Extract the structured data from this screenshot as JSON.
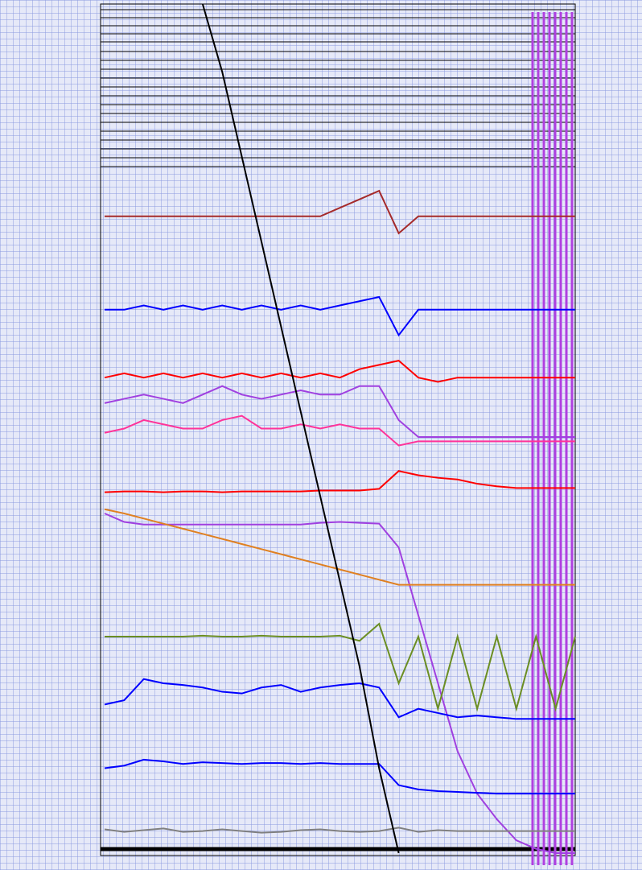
{
  "chart_data": {
    "type": "line",
    "grid": true,
    "ylim": [
      0,
      100
    ],
    "series": [
      {
        "color": "#a52a2a",
        "values": [
          75,
          75,
          75,
          75,
          75,
          75,
          75,
          75,
          75,
          75,
          75,
          75,
          76,
          77,
          78,
          73,
          75,
          75,
          75,
          75,
          75,
          75,
          75,
          75,
          75
        ]
      },
      {
        "color": "#0000ff",
        "values": [
          64,
          64,
          64.5,
          64,
          64.5,
          64,
          64.5,
          64,
          64.5,
          64,
          64.5,
          64,
          64.5,
          65,
          65.5,
          61,
          64,
          64,
          64,
          64,
          64,
          64,
          64,
          64,
          64
        ]
      },
      {
        "color": "#ff0000",
        "values": [
          56,
          56.5,
          56,
          56.5,
          56,
          56.5,
          56,
          56.5,
          56,
          56.5,
          56,
          56.5,
          56,
          57,
          57.5,
          58,
          56,
          55.5,
          56,
          56,
          56,
          56,
          56,
          56,
          56
        ]
      },
      {
        "color": "#a040e0",
        "values": [
          53,
          53.5,
          54,
          53.5,
          53,
          54,
          55,
          54,
          53.5,
          54,
          54.5,
          54,
          54,
          55,
          55,
          51,
          49,
          49,
          49,
          49,
          49,
          49,
          49,
          49,
          49
        ]
      },
      {
        "color": "#ff3399",
        "values": [
          49.5,
          50,
          51,
          50.5,
          50,
          50,
          51,
          51.5,
          50,
          50,
          50.5,
          50,
          50.5,
          50,
          50,
          48,
          48.5,
          48.5,
          48.5,
          48.5,
          48.5,
          48.5,
          48.5,
          48.5,
          48.5
        ]
      },
      {
        "color": "#ff0000",
        "values": [
          42.5,
          42.6,
          42.6,
          42.5,
          42.6,
          42.6,
          42.5,
          42.6,
          42.6,
          42.6,
          42.6,
          42.7,
          42.7,
          42.7,
          42.9,
          45,
          44.5,
          44.2,
          44,
          43.5,
          43.2,
          43,
          43,
          43,
          43
        ]
      },
      {
        "color": "#a040e0",
        "values": [
          40,
          39,
          38.7,
          38.7,
          38.7,
          38.7,
          38.7,
          38.7,
          38.7,
          38.7,
          38.7,
          38.9,
          39,
          38.9,
          38.8,
          36,
          28,
          20,
          12,
          7,
          4,
          1.5,
          0.5,
          0,
          0
        ]
      },
      {
        "color": "#e08020",
        "values": [
          40.5,
          40,
          39.4,
          38.8,
          38.2,
          37.6,
          37,
          36.4,
          35.8,
          35.2,
          34.6,
          34,
          33.4,
          32.8,
          32.2,
          31.6,
          31.6,
          31.6,
          31.6,
          31.6,
          31.6,
          31.6,
          31.6,
          31.6,
          31.6
        ]
      },
      {
        "color": "#6b8e23",
        "values": [
          25.5,
          25.5,
          25.5,
          25.5,
          25.5,
          25.6,
          25.5,
          25.5,
          25.6,
          25.5,
          25.5,
          25.5,
          25.6,
          25,
          27,
          20,
          25.5,
          17,
          25.5,
          17,
          25.5,
          17,
          25.5,
          17,
          25.5
        ]
      },
      {
        "color": "#0000ff",
        "values": [
          17.5,
          18,
          20.5,
          20,
          19.8,
          19.5,
          19,
          18.8,
          19.5,
          19.8,
          19,
          19.5,
          19.8,
          20,
          19.5,
          16,
          17,
          16.5,
          16,
          16.2,
          16,
          15.8,
          15.8,
          15.8,
          15.8
        ]
      },
      {
        "color": "#0000ff",
        "values": [
          10,
          10.3,
          11,
          10.8,
          10.5,
          10.7,
          10.6,
          10.5,
          10.6,
          10.6,
          10.5,
          10.6,
          10.5,
          10.5,
          10.5,
          8,
          7.5,
          7.3,
          7.2,
          7.1,
          7,
          7,
          7,
          7,
          7
        ]
      },
      {
        "color": "#808080",
        "values": [
          2.8,
          2.5,
          2.7,
          2.9,
          2.5,
          2.6,
          2.8,
          2.6,
          2.4,
          2.5,
          2.7,
          2.8,
          2.6,
          2.5,
          2.6,
          3,
          2.5,
          2.7,
          2.6,
          2.6,
          2.6,
          2.6,
          2.6,
          2.6,
          2.6
        ]
      },
      {
        "color": "#000000",
        "values": [
          null,
          null,
          null,
          null,
          null,
          100,
          92,
          82,
          72,
          62,
          52,
          42,
          32,
          22,
          10,
          0,
          null,
          null,
          null,
          null,
          null,
          null,
          null,
          null,
          null
        ]
      }
    ]
  }
}
